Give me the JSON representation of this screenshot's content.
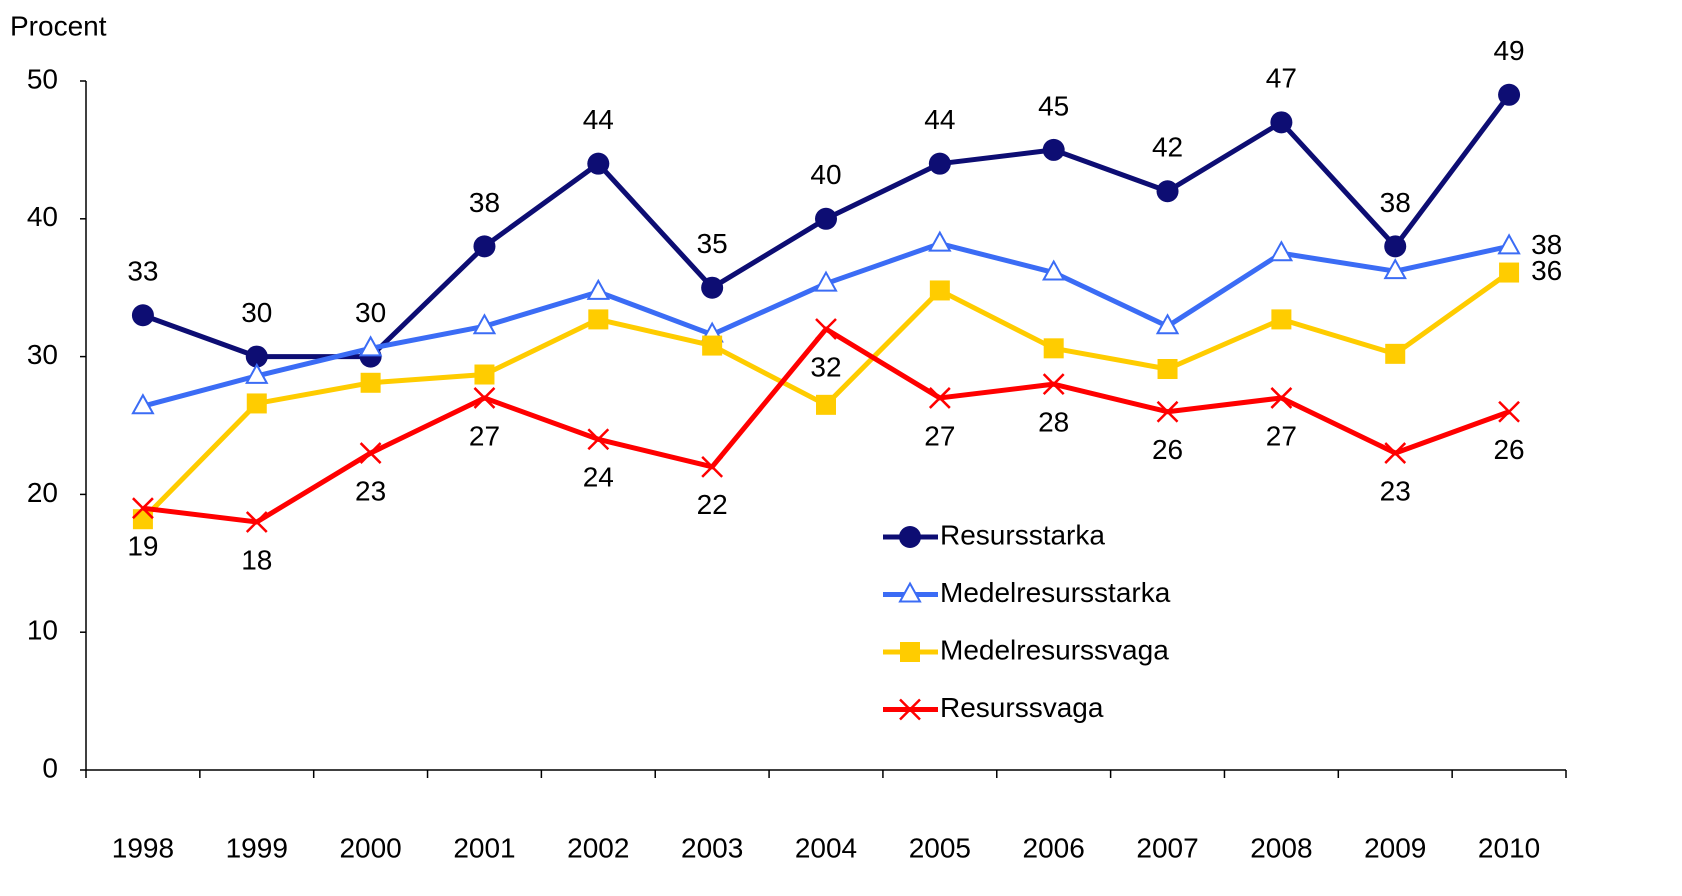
{
  "chart_data": {
    "type": "line",
    "y_axis_label": "Procent",
    "categories": [
      "1998",
      "1999",
      "2000",
      "2001",
      "2002",
      "2003",
      "2004",
      "2005",
      "2006",
      "2007",
      "2008",
      "2009",
      "2010"
    ],
    "ylim": [
      0,
      50
    ],
    "yticks": [
      0,
      10,
      20,
      30,
      40,
      50
    ],
    "grid": false,
    "legend": "lower right",
    "series": [
      {
        "name": "Resursstarka",
        "color": "#0d0d73",
        "marker": "circle",
        "label_position": "above",
        "values": [
          33,
          30,
          30,
          38,
          44,
          35,
          40,
          44,
          45,
          42,
          47,
          38,
          49
        ]
      },
      {
        "name": "Medelresursstarka",
        "color": "#3b6cf5",
        "marker": "triangle",
        "label_position": "right",
        "values": [
          26.4,
          28.6,
          30.6,
          32.2,
          34.7,
          31.6,
          35.3,
          38.2,
          36.1,
          32.2,
          37.5,
          36.2,
          38.0
        ],
        "value_labels": [
          null,
          null,
          null,
          null,
          null,
          null,
          null,
          null,
          null,
          null,
          null,
          null,
          "38"
        ]
      },
      {
        "name": "Medelresurssvaga",
        "color": "#ffcc00",
        "marker": "square",
        "label_position": "right",
        "values": [
          18.2,
          26.6,
          28.1,
          28.7,
          32.7,
          30.8,
          26.5,
          34.8,
          30.6,
          29.1,
          32.7,
          30.2,
          36.1
        ],
        "value_labels": [
          null,
          null,
          null,
          null,
          null,
          null,
          null,
          null,
          null,
          null,
          null,
          null,
          "36"
        ]
      },
      {
        "name": "Resurssvaga",
        "color": "#ff0000",
        "marker": "x",
        "label_position": "below",
        "values": [
          19,
          18,
          23,
          27,
          24,
          22,
          32,
          27,
          28,
          26,
          27,
          23,
          26
        ]
      }
    ]
  }
}
